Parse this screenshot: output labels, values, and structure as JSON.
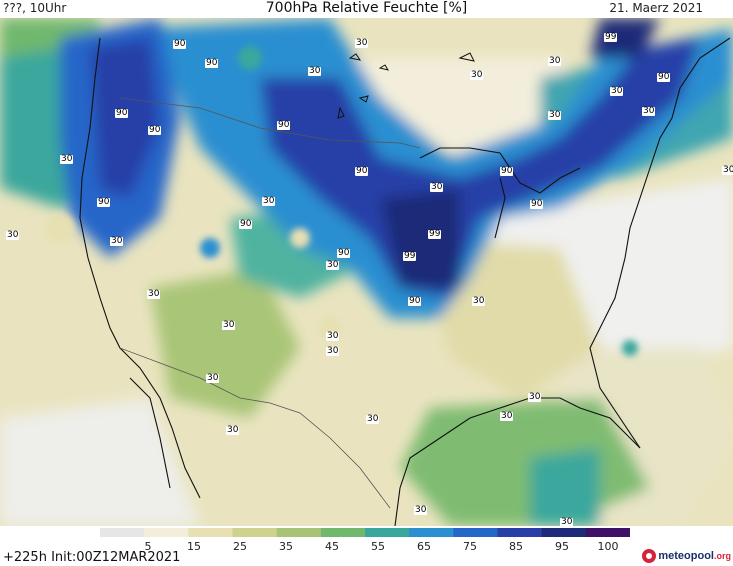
{
  "header": {
    "left": "???, 10Uhr",
    "title": "700hPa Relative Feuchte [%]",
    "date": "21. Maerz 2021"
  },
  "footer": {
    "run_info": "+225h Init:00Z12MAR2021"
  },
  "logo": {
    "brand": "meteopool",
    "tld": ".org"
  },
  "colorbar": {
    "ticks": [
      "5",
      "15",
      "25",
      "35",
      "45",
      "55",
      "65",
      "75",
      "85",
      "95",
      "100"
    ],
    "colors": [
      "#e6e6e6",
      "#f3eedb",
      "#e6e0b2",
      "#cdd28f",
      "#a7c476",
      "#6fb86d",
      "#3aa79d",
      "#2c8fd0",
      "#2566c9",
      "#283fa8",
      "#1f2a78",
      "#3c1166"
    ]
  },
  "map_labels": [
    {
      "text": "90",
      "tone": "dark"
    },
    {
      "text": "90",
      "tone": "dark"
    },
    {
      "text": "90",
      "tone": "dark"
    },
    {
      "text": "90",
      "tone": "dark"
    },
    {
      "text": "90",
      "tone": "dark"
    },
    {
      "text": "90",
      "tone": "dark"
    },
    {
      "text": "90",
      "tone": "dark"
    },
    {
      "text": "90",
      "tone": "dark"
    },
    {
      "text": "90",
      "tone": "dark"
    },
    {
      "text": "90",
      "tone": "dark"
    },
    {
      "text": "90",
      "tone": "dark"
    },
    {
      "text": "90",
      "tone": "dark"
    },
    {
      "text": "90",
      "tone": "dark"
    },
    {
      "text": "99",
      "tone": "dark"
    },
    {
      "text": "99",
      "tone": "dark"
    },
    {
      "text": "99",
      "tone": "dark"
    },
    {
      "text": "30",
      "tone": "light"
    },
    {
      "text": "30",
      "tone": "light"
    },
    {
      "text": "30",
      "tone": "light"
    },
    {
      "text": "30",
      "tone": "light"
    },
    {
      "text": "30",
      "tone": "light"
    },
    {
      "text": "30",
      "tone": "light"
    },
    {
      "text": "30",
      "tone": "light"
    },
    {
      "text": "30",
      "tone": "light"
    },
    {
      "text": "30",
      "tone": "light"
    },
    {
      "text": "30",
      "tone": "light"
    },
    {
      "text": "30",
      "tone": "light"
    },
    {
      "text": "30",
      "tone": "light"
    },
    {
      "text": "30",
      "tone": "light"
    },
    {
      "text": "30",
      "tone": "light"
    },
    {
      "text": "30",
      "tone": "light"
    },
    {
      "text": "30",
      "tone": "light"
    },
    {
      "text": "30",
      "tone": "light"
    },
    {
      "text": "30",
      "tone": "light"
    },
    {
      "text": "30",
      "tone": "light"
    },
    {
      "text": "30",
      "tone": "light"
    },
    {
      "text": "30",
      "tone": "light"
    },
    {
      "text": "30",
      "tone": "light"
    },
    {
      "text": "30",
      "tone": "light"
    },
    {
      "text": "30",
      "tone": "light"
    },
    {
      "text": "30",
      "tone": "light"
    },
    {
      "text": "30",
      "tone": "light"
    }
  ]
}
